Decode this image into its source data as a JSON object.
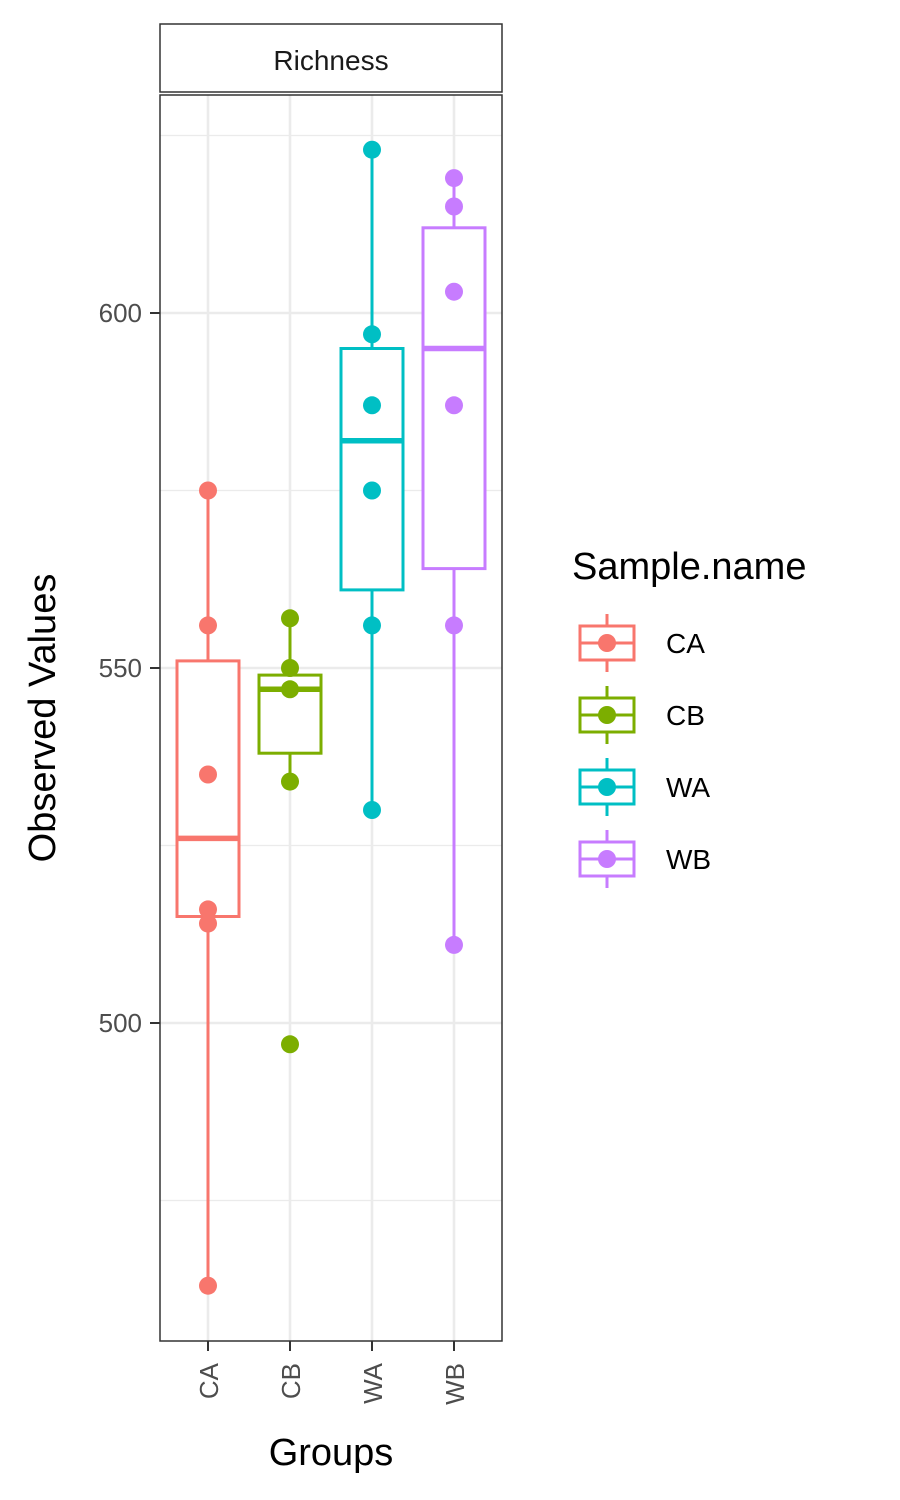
{
  "chart_data": {
    "type": "box",
    "facet": "Richness",
    "xlabel": "Groups",
    "ylabel": "Observed Values",
    "ylim": [
      460,
      635
    ],
    "yticks": [
      500,
      550,
      600
    ],
    "categories": [
      "CA",
      "CB",
      "WA",
      "WB"
    ],
    "legend": {
      "title": "Sample.name",
      "position": "right"
    },
    "grid": true,
    "series": [
      {
        "name": "CA",
        "color": "#F8766D",
        "box": {
          "lower_whisker": 463,
          "q1": 515,
          "median": 526,
          "q3": 551,
          "upper_whisker": 575
        },
        "points": [
          575,
          556,
          535,
          516,
          514,
          463
        ]
      },
      {
        "name": "CB",
        "color": "#7CAE00",
        "box": {
          "lower_whisker": 534,
          "q1": 538,
          "median": 547,
          "q3": 549,
          "upper_whisker": 557
        },
        "points": [
          557,
          550,
          547,
          534,
          497
        ]
      },
      {
        "name": "WA",
        "color": "#00BFC4",
        "box": {
          "lower_whisker": 530,
          "q1": 561,
          "median": 582,
          "q3": 595,
          "upper_whisker": 623
        },
        "points": [
          623,
          597,
          587,
          575,
          556,
          530
        ]
      },
      {
        "name": "WB",
        "color": "#C77CFF",
        "box": {
          "lower_whisker": 511,
          "q1": 564,
          "median": 595,
          "q3": 612,
          "upper_whisker": 619
        },
        "points": [
          619,
          615,
          603,
          587,
          556,
          511
        ]
      }
    ]
  }
}
